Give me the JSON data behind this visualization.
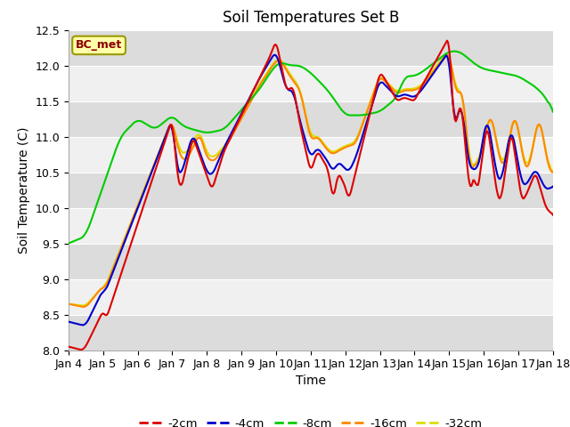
{
  "title": "Soil Temperatures Set B",
  "xlabel": "Time",
  "ylabel": "Soil Temperature (C)",
  "ylim": [
    8.0,
    12.5
  ],
  "annotation": "BC_met",
  "series_labels": [
    "-2cm",
    "-4cm",
    "-8cm",
    "-16cm",
    "-32cm"
  ],
  "series_colors": [
    "#dd0000",
    "#0000cc",
    "#00cc00",
    "#ff8800",
    "#dddd00"
  ],
  "xtick_labels": [
    "Jan 4",
    "Jan 5",
    "Jan 6",
    "Jan 7",
    "Jan 8",
    "Jan 9",
    "Jan 10",
    "Jan 11",
    "Jan 12",
    "Jan 13",
    "Jan 14",
    "Jan 15",
    "Jan 16",
    "Jan 17",
    "Jan 18"
  ],
  "bg_light": "#f0f0f0",
  "bg_dark": "#dcdcdc",
  "grid_color": "#ffffff",
  "n_points": 500
}
